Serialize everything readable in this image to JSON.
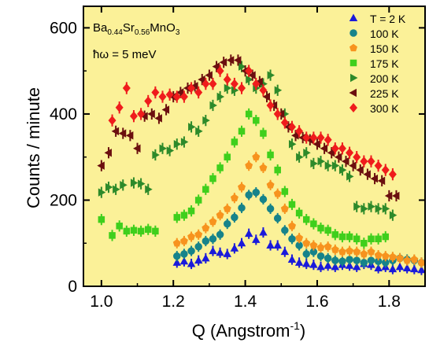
{
  "chart_data": {
    "type": "scatter",
    "title": "",
    "xlabel_main": "Q (Angstrom",
    "xlabel_sup": "-1",
    "xlabel_close": ")",
    "ylabel": "Counts / minute",
    "xlim": [
      0.95,
      1.9
    ],
    "ylim": [
      0,
      650
    ],
    "xticks": [
      1.0,
      1.2,
      1.4,
      1.6,
      1.8
    ],
    "xtick_labels": [
      "1.0",
      "1.2",
      "1.4",
      "1.6",
      "1.8"
    ],
    "yticks": [
      0,
      200,
      400,
      600
    ],
    "ytick_labels": [
      "0",
      "200",
      "400",
      "600"
    ],
    "plot_background": "#fbf198",
    "legend_position": "top-right",
    "annotations": {
      "compound": {
        "t1": "Ba",
        "s1": "0.44",
        "t2": "Sr",
        "s2": "0.56",
        "t3": "MnO",
        "s3": "3"
      },
      "energy": "ħω = 5 meV"
    },
    "series": [
      {
        "name": "T = 2 K",
        "marker": "triangle-up",
        "color": "#1a1adb",
        "x": [
          1.21,
          1.23,
          1.25,
          1.27,
          1.29,
          1.31,
          1.33,
          1.35,
          1.37,
          1.39,
          1.41,
          1.43,
          1.45,
          1.47,
          1.49,
          1.51,
          1.53,
          1.55,
          1.57,
          1.59,
          1.61,
          1.63,
          1.65,
          1.67,
          1.69,
          1.71,
          1.73,
          1.75,
          1.77,
          1.79,
          1.81,
          1.83,
          1.85,
          1.87,
          1.89
        ],
        "y": [
          55,
          58,
          52,
          60,
          65,
          82,
          78,
          75,
          88,
          100,
          122,
          108,
          125,
          95,
          95,
          80,
          62,
          55,
          52,
          50,
          45,
          48,
          45,
          50,
          48,
          45,
          52,
          50,
          42,
          45,
          40,
          45,
          42,
          40,
          38
        ],
        "err": [
          12,
          12,
          12,
          12,
          12,
          12,
          12,
          12,
          12,
          12,
          12,
          12,
          12,
          12,
          12,
          12,
          12,
          12,
          12,
          12,
          12,
          12,
          12,
          12,
          12,
          12,
          12,
          12,
          12,
          12,
          12,
          12,
          12,
          12,
          12
        ]
      },
      {
        "name": "100 K",
        "marker": "circle",
        "color": "#16838a",
        "x": [
          1.21,
          1.23,
          1.25,
          1.27,
          1.29,
          1.31,
          1.33,
          1.35,
          1.37,
          1.39,
          1.41,
          1.43,
          1.45,
          1.47,
          1.49,
          1.51,
          1.53,
          1.55,
          1.57,
          1.59,
          1.61,
          1.63,
          1.65,
          1.67,
          1.69,
          1.71,
          1.73,
          1.75,
          1.77,
          1.79,
          1.81,
          1.83,
          1.85,
          1.87,
          1.89
        ],
        "y": [
          70,
          75,
          82,
          92,
          105,
          110,
          120,
          145,
          160,
          182,
          212,
          218,
          202,
          180,
          158,
          130,
          110,
          95,
          75,
          80,
          70,
          65,
          60,
          58,
          62,
          60,
          55,
          60,
          58,
          55,
          60,
          65,
          62,
          60,
          55
        ],
        "err": [
          12,
          12,
          12,
          12,
          12,
          12,
          12,
          12,
          12,
          12,
          12,
          12,
          12,
          12,
          12,
          12,
          12,
          12,
          12,
          12,
          12,
          12,
          12,
          12,
          12,
          12,
          12,
          12,
          12,
          12,
          12,
          12,
          12,
          12,
          12
        ]
      },
      {
        "name": "150 K",
        "marker": "pentagon",
        "color": "#f7931e",
        "x": [
          1.21,
          1.23,
          1.25,
          1.27,
          1.29,
          1.31,
          1.33,
          1.35,
          1.37,
          1.39,
          1.41,
          1.43,
          1.45,
          1.47,
          1.49,
          1.51,
          1.53,
          1.55,
          1.57,
          1.59,
          1.61,
          1.63,
          1.65,
          1.67,
          1.69,
          1.71,
          1.73,
          1.75,
          1.77,
          1.79,
          1.81,
          1.83,
          1.85,
          1.87,
          1.89
        ],
        "y": [
          100,
          105,
          115,
          120,
          135,
          150,
          165,
          180,
          205,
          230,
          280,
          300,
          275,
          235,
          215,
          180,
          140,
          112,
          100,
          95,
          90,
          92,
          85,
          80,
          82,
          80,
          75,
          80,
          72,
          70,
          68,
          65,
          60,
          62,
          55
        ],
        "err": [
          12,
          12,
          12,
          12,
          12,
          12,
          12,
          12,
          12,
          12,
          12,
          12,
          12,
          12,
          12,
          12,
          12,
          12,
          12,
          12,
          12,
          12,
          12,
          12,
          12,
          12,
          12,
          12,
          12,
          12,
          12,
          12,
          12,
          12,
          12
        ]
      },
      {
        "name": "175 K",
        "marker": "square",
        "color": "#3fcf1c",
        "x": [
          1.0,
          1.03,
          1.05,
          1.07,
          1.09,
          1.11,
          1.13,
          1.15,
          1.21,
          1.23,
          1.25,
          1.27,
          1.29,
          1.31,
          1.33,
          1.35,
          1.37,
          1.39,
          1.41,
          1.43,
          1.45,
          1.47,
          1.49,
          1.51,
          1.53,
          1.55,
          1.57,
          1.59,
          1.61,
          1.63,
          1.65,
          1.67,
          1.69,
          1.71,
          1.73,
          1.75,
          1.77,
          1.79
        ],
        "y": [
          155,
          118,
          140,
          128,
          130,
          128,
          132,
          128,
          160,
          165,
          175,
          200,
          225,
          250,
          275,
          300,
          335,
          360,
          400,
          385,
          355,
          305,
          270,
          220,
          190,
          170,
          155,
          145,
          135,
          130,
          120,
          115,
          115,
          110,
          100,
          110,
          110,
          115
        ],
        "err": [
          13,
          13,
          13,
          13,
          13,
          13,
          13,
          13,
          13,
          13,
          13,
          13,
          13,
          13,
          13,
          13,
          13,
          13,
          13,
          13,
          13,
          13,
          13,
          13,
          13,
          13,
          13,
          13,
          13,
          13,
          13,
          13,
          13,
          13,
          13,
          13,
          13,
          13
        ]
      },
      {
        "name": "200 K",
        "marker": "triangle-right",
        "color": "#2d8a2a",
        "x": [
          1.0,
          1.02,
          1.04,
          1.06,
          1.09,
          1.11,
          1.13,
          1.15,
          1.17,
          1.19,
          1.21,
          1.23,
          1.25,
          1.27,
          1.29,
          1.31,
          1.33,
          1.35,
          1.37,
          1.39,
          1.41,
          1.43,
          1.45,
          1.47,
          1.49,
          1.51,
          1.53,
          1.55,
          1.57,
          1.59,
          1.61,
          1.63,
          1.65,
          1.67,
          1.69,
          1.71,
          1.73,
          1.75,
          1.77,
          1.79,
          1.81
        ],
        "y": [
          218,
          230,
          225,
          235,
          240,
          238,
          225,
          305,
          320,
          315,
          330,
          335,
          370,
          360,
          385,
          420,
          440,
          460,
          455,
          510,
          480,
          460,
          470,
          490,
          455,
          400,
          330,
          300,
          310,
          285,
          290,
          280,
          280,
          270,
          255,
          185,
          180,
          185,
          180,
          180,
          165
        ],
        "err": [
          13,
          13,
          13,
          13,
          13,
          13,
          13,
          13,
          13,
          13,
          13,
          13,
          13,
          13,
          13,
          13,
          13,
          13,
          13,
          13,
          13,
          13,
          13,
          13,
          13,
          13,
          13,
          13,
          13,
          13,
          13,
          13,
          13,
          13,
          13,
          13,
          13,
          13,
          13,
          13,
          13
        ]
      },
      {
        "name": "225 K",
        "marker": "triangle-left",
        "color": "#6b0f0f",
        "x": [
          1.0,
          1.02,
          1.04,
          1.06,
          1.08,
          1.1,
          1.12,
          1.14,
          1.16,
          1.18,
          1.2,
          1.22,
          1.24,
          1.26,
          1.28,
          1.3,
          1.32,
          1.34,
          1.36,
          1.38,
          1.4,
          1.42,
          1.44,
          1.46,
          1.48,
          1.5,
          1.52,
          1.54,
          1.56,
          1.58,
          1.6,
          1.62,
          1.64,
          1.66,
          1.68,
          1.7,
          1.72,
          1.74,
          1.76,
          1.78,
          1.8,
          1.82
        ],
        "y": [
          280,
          310,
          360,
          355,
          350,
          320,
          395,
          400,
          390,
          410,
          440,
          450,
          460,
          465,
          480,
          490,
          510,
          520,
          525,
          525,
          500,
          490,
          475,
          440,
          420,
          400,
          370,
          350,
          345,
          340,
          330,
          320,
          310,
          300,
          290,
          280,
          270,
          260,
          250,
          245,
          210,
          210
        ],
        "err": [
          13,
          13,
          13,
          13,
          13,
          13,
          13,
          13,
          13,
          13,
          13,
          13,
          13,
          13,
          13,
          13,
          13,
          13,
          13,
          13,
          13,
          13,
          13,
          13,
          13,
          13,
          13,
          13,
          13,
          13,
          13,
          13,
          13,
          13,
          13,
          13,
          13,
          13,
          13,
          13,
          13,
          13
        ]
      },
      {
        "name": "300 K",
        "marker": "diamond",
        "color": "#ef1c1c",
        "x": [
          1.03,
          1.05,
          1.07,
          1.09,
          1.11,
          1.13,
          1.15,
          1.17,
          1.19,
          1.21,
          1.23,
          1.25,
          1.27,
          1.29,
          1.31,
          1.33,
          1.35,
          1.37,
          1.39,
          1.41,
          1.43,
          1.45,
          1.47,
          1.49,
          1.51,
          1.53,
          1.55,
          1.57,
          1.59,
          1.61,
          1.63,
          1.65,
          1.67,
          1.69,
          1.71,
          1.73,
          1.75,
          1.77,
          1.79,
          1.81
        ],
        "y": [
          385,
          415,
          460,
          395,
          400,
          430,
          450,
          440,
          445,
          440,
          440,
          460,
          450,
          470,
          470,
          500,
          480,
          470,
          460,
          500,
          470,
          455,
          420,
          400,
          380,
          370,
          360,
          345,
          345,
          345,
          340,
          320,
          320,
          310,
          300,
          290,
          290,
          280,
          270,
          260
        ],
        "err": [
          14,
          14,
          14,
          14,
          14,
          14,
          14,
          14,
          14,
          14,
          14,
          14,
          14,
          14,
          14,
          14,
          14,
          14,
          14,
          14,
          14,
          14,
          14,
          14,
          14,
          14,
          14,
          14,
          14,
          14,
          14,
          14,
          14,
          14,
          14,
          14,
          14,
          14,
          14,
          14
        ]
      }
    ]
  }
}
